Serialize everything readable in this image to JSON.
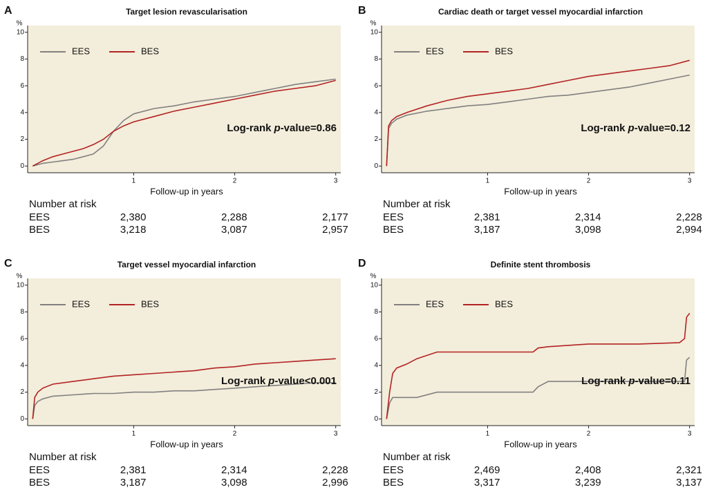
{
  "chart_data": [
    {
      "type": "line",
      "panel": "A",
      "title": "Target lesion revascularisation",
      "ylabel": "%",
      "xlabel": "Follow-up in years",
      "x": [
        0,
        0.1,
        0.2,
        0.3,
        0.4,
        0.5,
        0.6,
        0.7,
        0.8,
        0.9,
        1.0,
        1.2,
        1.4,
        1.6,
        1.8,
        2.0,
        2.2,
        2.4,
        2.6,
        2.8,
        3.0
      ],
      "series": [
        {
          "name": "EES",
          "color": "#808080",
          "values": [
            0,
            0.2,
            0.3,
            0.4,
            0.5,
            0.7,
            0.9,
            1.5,
            2.6,
            3.4,
            3.9,
            4.3,
            4.5,
            4.8,
            5.0,
            5.2,
            5.5,
            5.8,
            6.1,
            6.3,
            6.5
          ]
        },
        {
          "name": "BES",
          "color": "#b22222",
          "values": [
            0,
            0.4,
            0.7,
            0.9,
            1.1,
            1.3,
            1.6,
            2.0,
            2.6,
            3.0,
            3.3,
            3.7,
            4.1,
            4.4,
            4.7,
            5.0,
            5.3,
            5.6,
            5.8,
            6.0,
            6.4
          ]
        }
      ],
      "xlim": [
        -0.05,
        3.05
      ],
      "ylim": [
        -0.5,
        10.5
      ],
      "xticks": [
        1,
        2,
        3
      ],
      "yticks": [
        0,
        2,
        4,
        6,
        8,
        10
      ],
      "legend": "upper left",
      "annotation": {
        "prefix": "Log-rank",
        "italic": "p",
        "suffix": "-value=0.86"
      },
      "risk_table": {
        "title": "Number at risk",
        "rows": [
          {
            "name": "EES",
            "labels": [
              "2,380",
              "2,288",
              "2,177"
            ]
          },
          {
            "name": "BES",
            "labels": [
              "3,218",
              "3,087",
              "2,957"
            ]
          }
        ]
      }
    },
    {
      "type": "line",
      "panel": "B",
      "title": "Cardiac death or target vessel myocardial infarction",
      "ylabel": "%",
      "xlabel": "Follow-up in years",
      "x": [
        0,
        0.02,
        0.05,
        0.1,
        0.2,
        0.4,
        0.6,
        0.8,
        1.0,
        1.2,
        1.4,
        1.6,
        1.8,
        2.0,
        2.2,
        2.4,
        2.6,
        2.8,
        3.0
      ],
      "series": [
        {
          "name": "EES",
          "color": "#808080",
          "values": [
            0,
            2.8,
            3.2,
            3.5,
            3.8,
            4.1,
            4.3,
            4.5,
            4.6,
            4.8,
            5.0,
            5.2,
            5.3,
            5.5,
            5.7,
            5.9,
            6.2,
            6.5,
            6.8
          ]
        },
        {
          "name": "BES",
          "color": "#b22222",
          "values": [
            0,
            3.0,
            3.4,
            3.7,
            4.0,
            4.5,
            4.9,
            5.2,
            5.4,
            5.6,
            5.8,
            6.1,
            6.4,
            6.7,
            6.9,
            7.1,
            7.3,
            7.5,
            7.9
          ]
        }
      ],
      "xlim": [
        -0.05,
        3.05
      ],
      "ylim": [
        -0.5,
        10.5
      ],
      "xticks": [
        1,
        2,
        3
      ],
      "yticks": [
        0,
        2,
        4,
        6,
        8,
        10
      ],
      "legend": "upper left",
      "annotation": {
        "prefix": "Log-rank",
        "italic": "p",
        "suffix": "-value=0.12"
      },
      "risk_table": {
        "title": "Number at risk",
        "rows": [
          {
            "name": "EES",
            "labels": [
              "2,381",
              "2,314",
              "2,228"
            ]
          },
          {
            "name": "BES",
            "labels": [
              "3,187",
              "3,098",
              "2,994"
            ]
          }
        ]
      }
    },
    {
      "type": "line",
      "panel": "C",
      "title": "Target vessel myocardial infarction",
      "ylabel": "%",
      "xlabel": "Follow-up in years",
      "x": [
        0,
        0.02,
        0.05,
        0.1,
        0.2,
        0.4,
        0.6,
        0.8,
        1.0,
        1.2,
        1.4,
        1.6,
        1.8,
        2.0,
        2.2,
        2.4,
        2.6,
        2.8,
        3.0
      ],
      "series": [
        {
          "name": "EES",
          "color": "#808080",
          "values": [
            0,
            1.0,
            1.3,
            1.5,
            1.7,
            1.8,
            1.9,
            1.9,
            2.0,
            2.0,
            2.1,
            2.1,
            2.2,
            2.3,
            2.4,
            2.5,
            2.6,
            2.7,
            2.7
          ]
        },
        {
          "name": "BES",
          "color": "#b22222",
          "values": [
            0,
            1.6,
            2.0,
            2.3,
            2.6,
            2.8,
            3.0,
            3.2,
            3.3,
            3.4,
            3.5,
            3.6,
            3.8,
            3.9,
            4.1,
            4.2,
            4.3,
            4.4,
            4.5
          ]
        }
      ],
      "xlim": [
        -0.05,
        3.05
      ],
      "ylim": [
        -0.5,
        10.5
      ],
      "xticks": [
        1,
        2,
        3
      ],
      "yticks": [
        0,
        2,
        4,
        6,
        8,
        10
      ],
      "legend": "upper left",
      "annotation": {
        "prefix": "Log-rank",
        "italic": "p",
        "suffix": "-value<0.001"
      },
      "risk_table": {
        "title": "Number at risk",
        "rows": [
          {
            "name": "EES",
            "labels": [
              "2,381",
              "2,314",
              "2,228"
            ]
          },
          {
            "name": "BES",
            "labels": [
              "3,187",
              "3,098",
              "2,996"
            ]
          }
        ]
      }
    },
    {
      "type": "line",
      "panel": "D",
      "title": "Definite stent thrombosis",
      "ylabel": "%",
      "xlabel": "Follow-up in years",
      "x": [
        0,
        0.03,
        0.06,
        0.1,
        0.2,
        0.3,
        0.5,
        1.0,
        1.45,
        1.5,
        1.6,
        2.0,
        2.5,
        2.9,
        2.95,
        2.97,
        3.0
      ],
      "series": [
        {
          "name": "EES",
          "color": "#808080",
          "values": [
            0,
            1.2,
            1.6,
            1.6,
            1.6,
            1.6,
            2.0,
            2.0,
            2.0,
            2.4,
            2.8,
            2.8,
            2.8,
            2.8,
            2.8,
            4.4,
            4.6
          ]
        },
        {
          "name": "BES",
          "color": "#b22222",
          "values": [
            0,
            2.0,
            3.4,
            3.8,
            4.1,
            4.5,
            5.0,
            5.0,
            5.0,
            5.3,
            5.4,
            5.6,
            5.6,
            5.7,
            6.0,
            7.6,
            7.9
          ]
        }
      ],
      "xlim": [
        -0.05,
        3.05
      ],
      "ylim": [
        -0.5,
        10.5
      ],
      "xticks": [
        1,
        2,
        3
      ],
      "yticks": [
        0,
        2,
        4,
        6,
        8,
        10
      ],
      "legend": "upper left",
      "annotation": {
        "prefix": "Log-rank",
        "italic": "p",
        "suffix": "-value=0.11"
      },
      "risk_table": {
        "title": "Number at risk",
        "rows": [
          {
            "name": "EES",
            "labels": [
              "2,469",
              "2,408",
              "2,321"
            ]
          },
          {
            "name": "BES",
            "labels": [
              "3,317",
              "3,239",
              "3,137"
            ]
          }
        ]
      }
    }
  ]
}
